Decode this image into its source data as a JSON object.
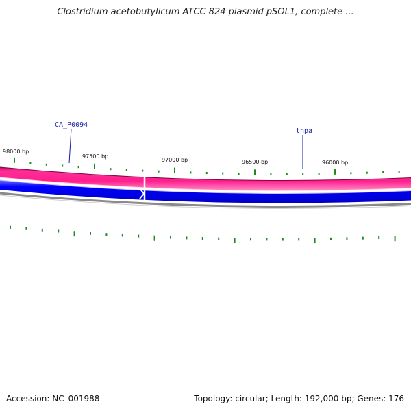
{
  "header": {
    "title": "Clostridium acetobutylicum ATCC 824 plasmid pSOL1, complete ..."
  },
  "map": {
    "ticks": [
      {
        "label": "98000 bp"
      },
      {
        "label": "97500 bp"
      },
      {
        "label": "97000 bp"
      },
      {
        "label": "96500 bp"
      },
      {
        "label": "96000 bp"
      }
    ],
    "genes": [
      {
        "label": "CA_P0094"
      },
      {
        "label": "tnpa"
      }
    ],
    "colors": {
      "forward_track": "#ff1f8e",
      "reverse_track": "#0000ff",
      "backbone": "#8a8a8a",
      "gc_bars": "#1f8a1f",
      "gene_label": "#1a1aa8"
    }
  },
  "footer": {
    "accession": "Accession: NC_001988",
    "summary": "Topology: circular; Length: 192,000 bp; Genes: 176"
  }
}
